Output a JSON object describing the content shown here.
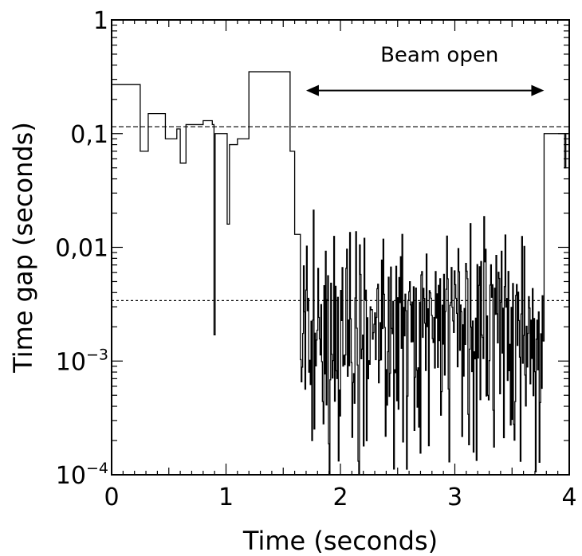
{
  "chart_data": {
    "type": "line",
    "step": true,
    "xlabel": "Time (seconds)",
    "ylabel": "Time gap (seconds)",
    "xlim": [
      0,
      4
    ],
    "ylim": [
      0.0001,
      1
    ],
    "yscale": "log",
    "x_ticks": [
      {
        "value": 0,
        "label": "0"
      },
      {
        "value": 1,
        "label": "1"
      },
      {
        "value": 2,
        "label": "2"
      },
      {
        "value": 3,
        "label": "3"
      },
      {
        "value": 4,
        "label": "4"
      }
    ],
    "y_ticks": [
      {
        "value": 1,
        "base": "1",
        "exp": ""
      },
      {
        "value": 0.1,
        "base": "0,1",
        "exp": ""
      },
      {
        "value": 0.01,
        "base": "0,01",
        "exp": ""
      },
      {
        "value": 0.001,
        "base": "10",
        "exp": "−3"
      },
      {
        "value": 0.0001,
        "base": "10",
        "exp": "−4"
      }
    ],
    "reference_lines": [
      {
        "y": 0.115,
        "style": "dashed"
      },
      {
        "y": 0.0034,
        "style": "dotted"
      }
    ],
    "annotation": {
      "text": "Beam open",
      "x_start": 1.7,
      "x_end": 3.78,
      "y": 0.3
    },
    "series": [
      {
        "steps": [
          [
            0.0,
            0.27
          ],
          [
            0.25,
            0.07
          ],
          [
            0.32,
            0.15
          ],
          [
            0.47,
            0.09
          ],
          [
            0.57,
            0.11
          ],
          [
            0.6,
            0.055
          ],
          [
            0.65,
            0.12
          ],
          [
            0.75,
            0.12
          ],
          [
            0.8,
            0.13
          ],
          [
            0.88,
            0.12
          ],
          [
            0.895,
            0.0017
          ],
          [
            0.905,
            0.1
          ],
          [
            0.97,
            0.1
          ],
          [
            1.01,
            0.016
          ],
          [
            1.03,
            0.08
          ],
          [
            1.1,
            0.09
          ],
          [
            1.2,
            0.35
          ],
          [
            1.56,
            0.07
          ],
          [
            1.6,
            0.013
          ],
          [
            1.65,
            0.005
          ]
        ],
        "beam": {
          "x_start": 1.65,
          "x_end": 3.77,
          "n": 320,
          "seed": 7,
          "median": 0.004,
          "min": 0.0001,
          "max": 0.035
        },
        "tail": [
          [
            3.77,
            0.0015
          ],
          [
            3.78,
            0.1
          ],
          [
            3.96,
            0.05
          ],
          [
            3.97,
            0.1
          ]
        ],
        "x_end": 4.0
      }
    ]
  }
}
